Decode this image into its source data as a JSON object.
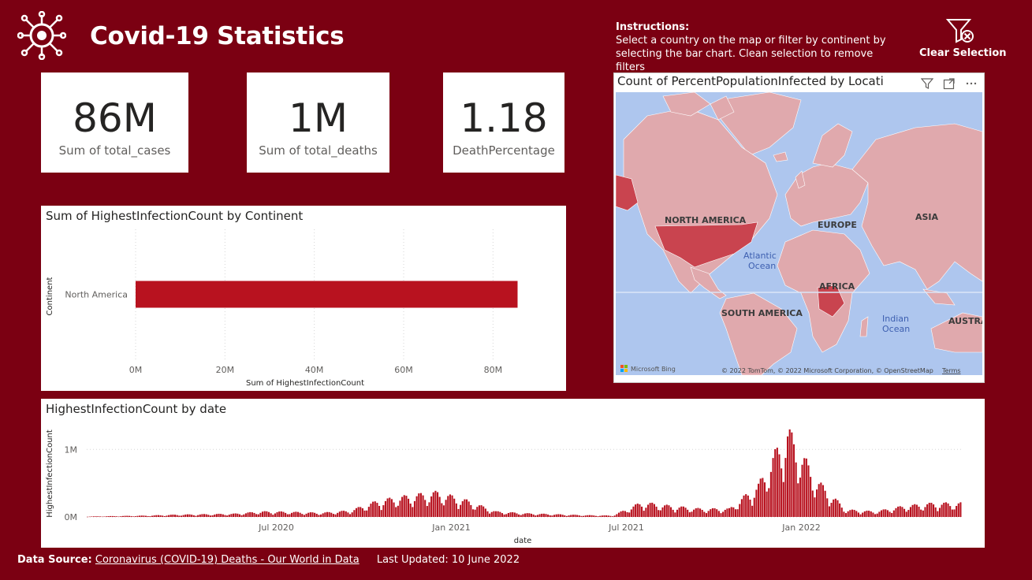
{
  "header": {
    "title": "Covid-19 Statistics",
    "instructions_heading": "Instructions:",
    "instructions_text": "Select a country on the map or filter by continent by selecting the bar chart. Clean selection to remove filters",
    "clear_label": "Clear Selection",
    "logo_icon": "virus-icon",
    "clear_icon": "filter-clear-icon"
  },
  "cards": [
    {
      "value": "86M",
      "label": "Sum of total_cases"
    },
    {
      "value": "1M",
      "label": "Sum of total_deaths"
    },
    {
      "value": "1.18",
      "label": "DeathPercentage"
    }
  ],
  "bar_panel": {
    "title": "Sum of HighestInfectionCount by Continent"
  },
  "line_panel": {
    "title": "HighestInfectionCount by date"
  },
  "map_panel": {
    "title": "Count of PercentPopulationInfected by Locati",
    "labels": {
      "north_america": "NORTH AMERICA",
      "europe": "EUROPE",
      "asia": "ASIA",
      "atlantic": "Atlantic",
      "ocean": "Ocean",
      "africa": "AFRICA",
      "south_america": "SOUTH AMERICA",
      "indian": "Indian",
      "indian_ocean": "Ocean",
      "australia": "AUSTRA"
    },
    "bing": "Microsoft Bing",
    "copyright": "© 2022 TomTom, © 2022 Microsoft Corporation, © OpenStreetMap",
    "terms": "Terms"
  },
  "footer": {
    "source_label": "Data Source:",
    "source_link": "Coronavirus (COVID-19) Deaths - Our World in Data",
    "updated": "Last Updated: 10 June 2022"
  },
  "colors": {
    "background": "#7b0012",
    "bar": "#b8121f",
    "map_water": "#aec6ee",
    "map_land": "#e0a9ad",
    "map_highlight": "#c9444f"
  },
  "chart_data": [
    {
      "type": "bar",
      "orientation": "horizontal",
      "title": "Sum of HighestInfectionCount by Continent",
      "categories": [
        "North America"
      ],
      "values": [
        85500000
      ],
      "xlabel": "Sum of HighestInfectionCount",
      "ylabel": "Continent",
      "xlim": [
        0,
        90000000
      ],
      "xticks": [
        "0M",
        "20M",
        "40M",
        "60M",
        "80M"
      ],
      "grid": true
    },
    {
      "type": "bar",
      "title": "HighestInfectionCount by date",
      "xlabel": "date",
      "ylabel": "HighestInfectionCount",
      "xticks": [
        "Jul 2020",
        "Jan 2021",
        "Jul 2021",
        "Jan 2022"
      ],
      "yticks": [
        "0M",
        "1M"
      ],
      "ylim": [
        0,
        1400000
      ],
      "x": [
        "2020-01",
        "2020-02",
        "2020-03",
        "2020-04",
        "2020-05",
        "2020-06",
        "2020-07",
        "2020-08",
        "2020-09",
        "2020-10",
        "2020-11",
        "2020-12",
        "2021-01",
        "2021-02",
        "2021-03",
        "2021-04",
        "2021-05",
        "2021-06",
        "2021-07",
        "2021-08",
        "2021-09",
        "2021-10",
        "2021-11",
        "2021-12",
        "2022-01",
        "2022-02",
        "2022-03",
        "2022-04",
        "2022-05",
        "2022-06"
      ],
      "values": [
        5000,
        10000,
        15000,
        25000,
        30000,
        35000,
        60000,
        55000,
        45000,
        70000,
        180000,
        230000,
        270000,
        180000,
        60000,
        40000,
        30000,
        20000,
        15000,
        160000,
        120000,
        90000,
        90000,
        350000,
        950000,
        400000,
        80000,
        60000,
        120000,
        150000
      ]
    }
  ]
}
